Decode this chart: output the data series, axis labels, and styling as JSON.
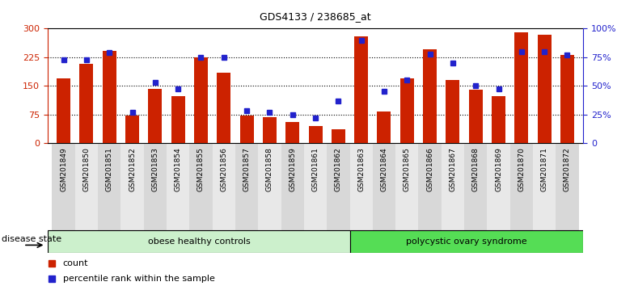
{
  "title": "GDS4133 / 238685_at",
  "samples": [
    "GSM201849",
    "GSM201850",
    "GSM201851",
    "GSM201852",
    "GSM201853",
    "GSM201854",
    "GSM201855",
    "GSM201856",
    "GSM201857",
    "GSM201858",
    "GSM201859",
    "GSM201861",
    "GSM201862",
    "GSM201863",
    "GSM201864",
    "GSM201865",
    "GSM201866",
    "GSM201867",
    "GSM201868",
    "GSM201869",
    "GSM201870",
    "GSM201871",
    "GSM201872"
  ],
  "counts": [
    170,
    207,
    242,
    72,
    143,
    122,
    225,
    185,
    72,
    68,
    55,
    45,
    35,
    280,
    82,
    170,
    245,
    165,
    140,
    123,
    290,
    283,
    230
  ],
  "percentiles": [
    73,
    73,
    79,
    27,
    53,
    47,
    75,
    75,
    28,
    27,
    25,
    22,
    37,
    90,
    45,
    55,
    78,
    70,
    50,
    47,
    80,
    80,
    77
  ],
  "group1_label": "obese healthy controls",
  "group1_count": 13,
  "group2_label": "polycystic ovary syndrome",
  "group2_count": 10,
  "disease_state_label": "disease state",
  "y_left_ticks": [
    0,
    75,
    150,
    225,
    300
  ],
  "y_right_tick_labels": [
    "0",
    "25%",
    "50%",
    "75%",
    "100%"
  ],
  "bar_color": "#cc2200",
  "dot_color": "#2222cc",
  "group1_bg": "#ccf0cc",
  "group2_bg": "#55dd55",
  "left_axis_color": "#cc2200",
  "right_axis_color": "#2222cc",
  "xtick_bg1": "#d8d8d8",
  "xtick_bg2": "#e8e8e8"
}
